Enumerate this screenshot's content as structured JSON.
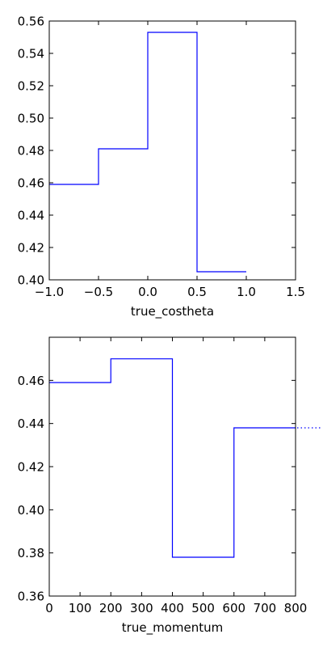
{
  "chart_data": [
    {
      "type": "step",
      "xlabel": "true_costheta",
      "ylabel": "",
      "title": "",
      "xlim": [
        -1.0,
        1.5
      ],
      "ylim": [
        0.4,
        0.56
      ],
      "xticks": [
        -1.0,
        -0.5,
        0.0,
        0.5,
        1.0,
        1.5
      ],
      "xtick_labels": [
        "−1.0",
        "−0.5",
        "0.0",
        "0.5",
        "1.0",
        "1.5"
      ],
      "yticks": [
        0.4,
        0.42,
        0.44,
        0.46,
        0.48,
        0.5,
        0.52,
        0.54,
        0.56
      ],
      "ytick_labels": [
        "0.40",
        "0.42",
        "0.44",
        "0.46",
        "0.48",
        "0.50",
        "0.52",
        "0.54",
        "0.56"
      ],
      "bin_edges": [
        -1.0,
        -0.5,
        0.0,
        0.5,
        1.0
      ],
      "values": [
        0.459,
        0.481,
        0.553,
        0.405
      ],
      "color": "#0000ff",
      "grid": false
    },
    {
      "type": "step",
      "xlabel": "true_momentum",
      "ylabel": "",
      "title": "",
      "xlim": [
        0,
        800
      ],
      "ylim": [
        0.36,
        0.48
      ],
      "xticks": [
        0,
        100,
        200,
        300,
        400,
        500,
        600,
        700,
        800
      ],
      "xtick_labels": [
        "0",
        "100",
        "200",
        "300",
        "400",
        "500",
        "600",
        "700",
        "800"
      ],
      "yticks": [
        0.36,
        0.38,
        0.4,
        0.42,
        0.44,
        0.46
      ],
      "ytick_labels": [
        "0.36",
        "0.38",
        "0.40",
        "0.42",
        "0.44",
        "0.46"
      ],
      "bin_edges": [
        0,
        200,
        400,
        600,
        800
      ],
      "values": [
        0.459,
        0.47,
        0.378,
        0.438
      ],
      "overflow_value": 0.438,
      "color": "#0000ff",
      "grid": false
    }
  ]
}
